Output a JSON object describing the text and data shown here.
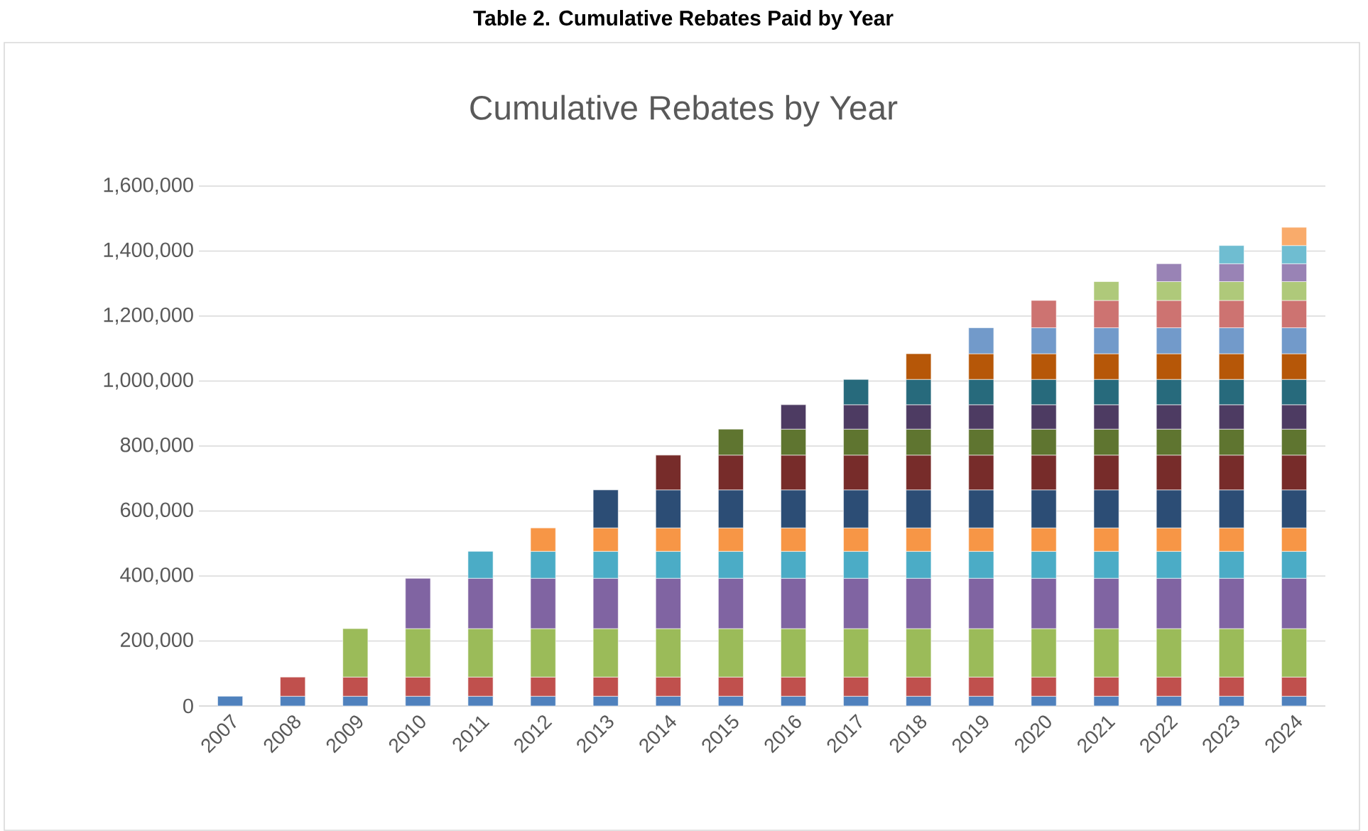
{
  "chart_data": {
    "type": "bar",
    "stacked": true,
    "title": "Table 2. Cumulative Rebates Paid by Year",
    "subtitle": "Cumulative Rebates by Year",
    "categories": [
      "2007",
      "2008",
      "2009",
      "2010",
      "2011",
      "2012",
      "2013",
      "2014",
      "2015",
      "2016",
      "2017",
      "2018",
      "2019",
      "2020",
      "2021",
      "2022",
      "2023",
      "2024"
    ],
    "series": [
      {
        "color": "#4f81bd",
        "values": [
          30000,
          30000,
          30000,
          30000,
          30000,
          30000,
          30000,
          30000,
          30000,
          30000,
          30000,
          30000,
          30000,
          30000,
          30000,
          30000,
          30000,
          30000
        ]
      },
      {
        "color": "#c0504d",
        "values": [
          null,
          59000,
          59000,
          59000,
          59000,
          59000,
          59000,
          59000,
          59000,
          59000,
          59000,
          59000,
          59000,
          59000,
          59000,
          59000,
          59000,
          59000
        ]
      },
      {
        "color": "#9bbb59",
        "values": [
          null,
          null,
          149000,
          149000,
          149000,
          149000,
          149000,
          149000,
          149000,
          149000,
          149000,
          149000,
          149000,
          149000,
          149000,
          149000,
          149000,
          149000
        ]
      },
      {
        "color": "#8064a2",
        "values": [
          null,
          null,
          null,
          155000,
          155000,
          155000,
          155000,
          155000,
          155000,
          155000,
          155000,
          155000,
          155000,
          155000,
          155000,
          155000,
          155000,
          155000
        ]
      },
      {
        "color": "#4bacc6",
        "values": [
          null,
          null,
          null,
          null,
          83000,
          83000,
          83000,
          83000,
          83000,
          83000,
          83000,
          83000,
          83000,
          83000,
          83000,
          83000,
          83000,
          83000
        ]
      },
      {
        "color": "#f79646",
        "values": [
          null,
          null,
          null,
          null,
          null,
          72000,
          72000,
          72000,
          72000,
          72000,
          72000,
          72000,
          72000,
          72000,
          72000,
          72000,
          72000,
          72000
        ]
      },
      {
        "color": "#2c4d75",
        "values": [
          null,
          null,
          null,
          null,
          null,
          null,
          117000,
          117000,
          117000,
          117000,
          117000,
          117000,
          117000,
          117000,
          117000,
          117000,
          117000,
          117000
        ]
      },
      {
        "color": "#772c2a",
        "values": [
          null,
          null,
          null,
          null,
          null,
          null,
          null,
          107000,
          107000,
          107000,
          107000,
          107000,
          107000,
          107000,
          107000,
          107000,
          107000,
          107000
        ]
      },
      {
        "color": "#5f7530",
        "values": [
          null,
          null,
          null,
          null,
          null,
          null,
          null,
          null,
          80000,
          80000,
          80000,
          80000,
          80000,
          80000,
          80000,
          80000,
          80000,
          80000
        ]
      },
      {
        "color": "#4d3b62",
        "values": [
          null,
          null,
          null,
          null,
          null,
          null,
          null,
          null,
          null,
          75000,
          75000,
          75000,
          75000,
          75000,
          75000,
          75000,
          75000,
          75000
        ]
      },
      {
        "color": "#276a7c",
        "values": [
          null,
          null,
          null,
          null,
          null,
          null,
          null,
          null,
          null,
          null,
          78000,
          78000,
          78000,
          78000,
          78000,
          78000,
          78000,
          78000
        ]
      },
      {
        "color": "#b65708",
        "values": [
          null,
          null,
          null,
          null,
          null,
          null,
          null,
          null,
          null,
          null,
          null,
          79000,
          79000,
          79000,
          79000,
          79000,
          79000,
          79000
        ]
      },
      {
        "color": "#729aca",
        "values": [
          null,
          null,
          null,
          null,
          null,
          null,
          null,
          null,
          null,
          null,
          null,
          null,
          80000,
          80000,
          80000,
          80000,
          80000,
          80000
        ]
      },
      {
        "color": "#cd7371",
        "values": [
          null,
          null,
          null,
          null,
          null,
          null,
          null,
          null,
          null,
          null,
          null,
          null,
          null,
          84000,
          84000,
          84000,
          84000,
          84000
        ]
      },
      {
        "color": "#afc97a",
        "values": [
          null,
          null,
          null,
          null,
          null,
          null,
          null,
          null,
          null,
          null,
          null,
          null,
          null,
          null,
          58000,
          58000,
          58000,
          58000
        ]
      },
      {
        "color": "#9983b5",
        "values": [
          null,
          null,
          null,
          null,
          null,
          null,
          null,
          null,
          null,
          null,
          null,
          null,
          null,
          null,
          null,
          55000,
          55000,
          55000
        ]
      },
      {
        "color": "#6fbdd1",
        "values": [
          null,
          null,
          null,
          null,
          null,
          null,
          null,
          null,
          null,
          null,
          null,
          null,
          null,
          null,
          null,
          null,
          56000,
          56000
        ]
      },
      {
        "color": "#f9ab6b",
        "values": [
          null,
          null,
          null,
          null,
          null,
          null,
          null,
          null,
          null,
          null,
          null,
          null,
          null,
          null,
          null,
          null,
          null,
          56000
        ]
      }
    ],
    "ylim": [
      0,
      1600000
    ],
    "yticks": [
      0,
      {
        "value": 200000,
        "label": "200,000"
      },
      {
        "value": 400000,
        "label": "400,000"
      },
      {
        "value": 600000,
        "label": "600,000"
      },
      {
        "value": 800000,
        "label": "800,000"
      },
      {
        "value": 1000000,
        "label": "1,000,000"
      },
      {
        "value": 1200000,
        "label": "1,200,000"
      },
      {
        "value": 1400000,
        "label": "1,400,000"
      },
      {
        "value": 1600000,
        "label": "1,600,000"
      }
    ],
    "grid": "y"
  }
}
